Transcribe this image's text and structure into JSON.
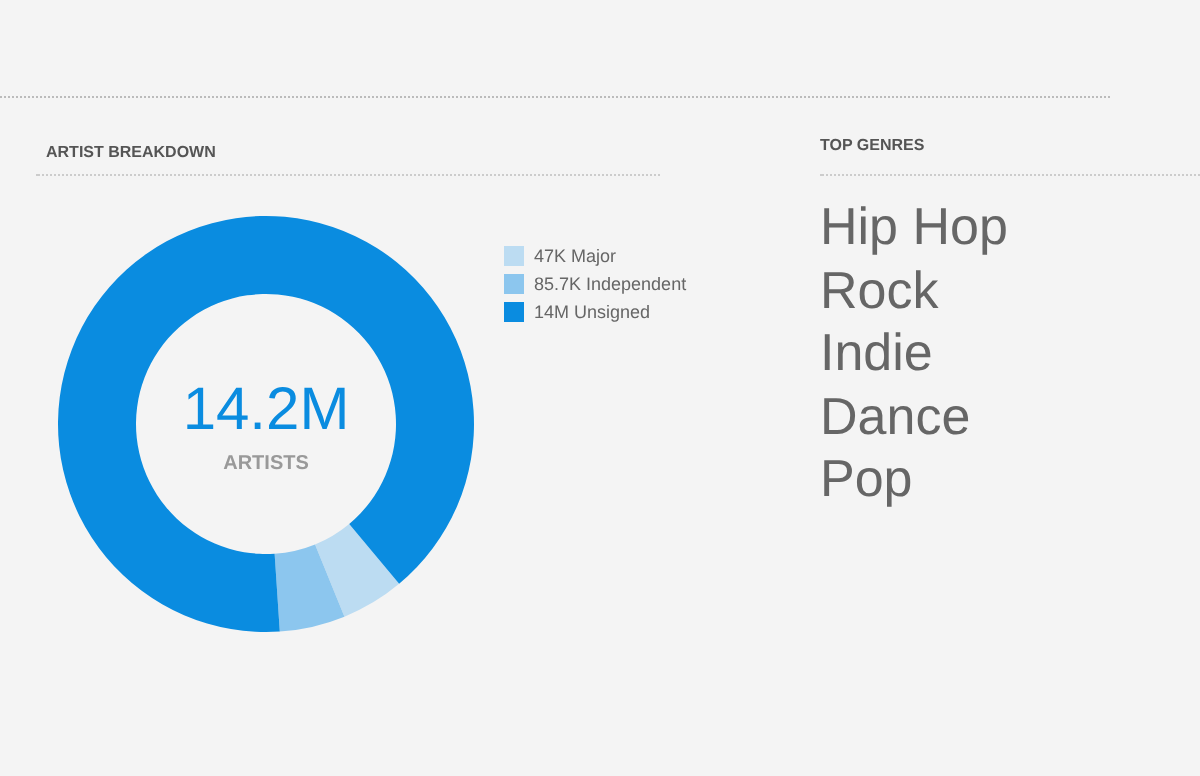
{
  "chart_data": [
    {
      "type": "donut",
      "title": "ARTIST BREAKDOWN",
      "categories": [
        "47K Major",
        "85.7K Independent",
        "14M Unsigned"
      ],
      "values": [
        4.9,
        5.1,
        90
      ],
      "colors": [
        "#bcdcf2",
        "#8cc6ee",
        "#0a8ce0"
      ],
      "legend": "top right",
      "annotations": [
        "14.2M",
        "ARTISTS"
      ]
    },
    {
      "type": "other",
      "title": "TOP GENRES",
      "annotations": [
        "Hip Hop",
        "Rock",
        "Indie",
        "Dance",
        "Pop"
      ]
    }
  ]
}
